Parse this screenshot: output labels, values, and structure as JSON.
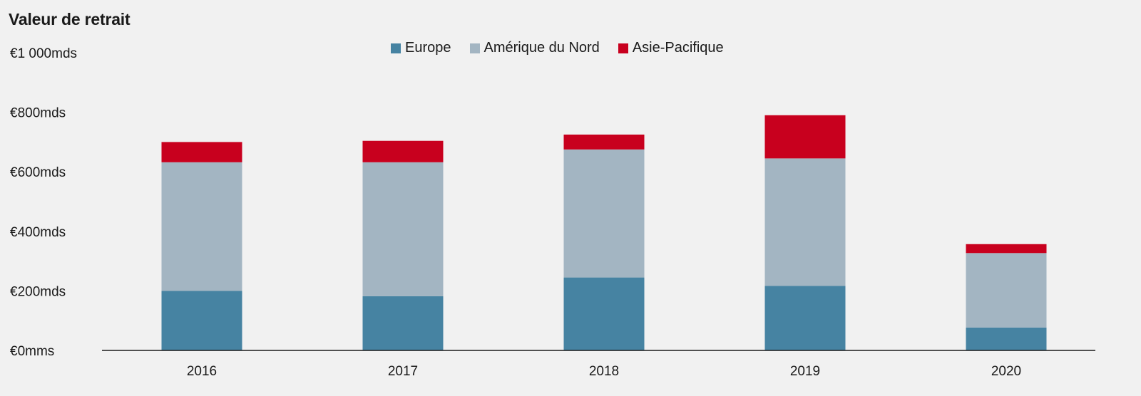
{
  "title": "Valeur de retrait",
  "legend": {
    "placement": "top-center",
    "items": [
      {
        "label": "Europe",
        "color": "#4683a2"
      },
      {
        "label": "Amérique du Nord",
        "color": "#a3b5c2"
      },
      {
        "label": "Asie-Pacifique",
        "color": "#c8001e"
      }
    ]
  },
  "chart_data": {
    "type": "bar",
    "stacked": true,
    "title": "Valeur de retrait",
    "categories": [
      "2016",
      "2017",
      "2018",
      "2019",
      "2020"
    ],
    "series": [
      {
        "name": "Europe",
        "color": "#4683a2",
        "values": [
          200,
          182,
          245,
          217,
          77
        ]
      },
      {
        "name": "Amérique du Nord",
        "color": "#a3b5c2",
        "values": [
          432,
          450,
          430,
          428,
          250
        ]
      },
      {
        "name": "Asie-Pacifique",
        "color": "#c8001e",
        "values": [
          68,
          72,
          50,
          145,
          30
        ]
      }
    ],
    "ylim": [
      0,
      1000
    ],
    "yticks": [
      0,
      200,
      400,
      600,
      800,
      1000
    ],
    "ytick_labels": [
      "€0mms",
      "€200mds",
      "€400mds",
      "€600mds",
      "€800mds",
      "€1 000mds"
    ],
    "grid": false,
    "xlabel": "",
    "ylabel": ""
  }
}
